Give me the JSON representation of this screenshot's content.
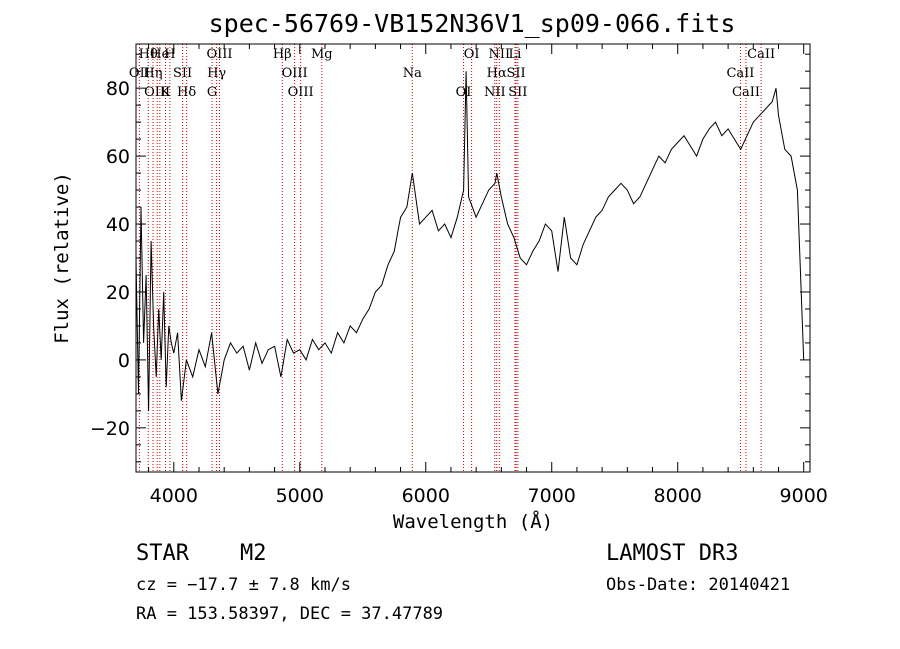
{
  "chart_data": {
    "type": "line",
    "title": "spec-56769-VB152N36V1_sp09-066.fits",
    "xlabel": "Wavelength (Å)",
    "ylabel": "Flux (relative)",
    "xlim": [
      3700,
      9050
    ],
    "ylim": [
      -33,
      93
    ],
    "xticks": [
      4000,
      5000,
      6000,
      7000,
      8000,
      9000
    ],
    "yticks": [
      -20,
      0,
      20,
      40,
      60,
      80
    ],
    "spectrum": {
      "name": "flux",
      "x": [
        3700,
        3720,
        3740,
        3760,
        3780,
        3800,
        3820,
        3840,
        3860,
        3880,
        3900,
        3920,
        3940,
        3960,
        3980,
        4000,
        4030,
        4060,
        4100,
        4150,
        4200,
        4250,
        4300,
        4350,
        4400,
        4450,
        4500,
        4550,
        4600,
        4650,
        4700,
        4750,
        4800,
        4850,
        4900,
        4950,
        5000,
        5050,
        5100,
        5150,
        5200,
        5250,
        5300,
        5350,
        5400,
        5450,
        5500,
        5550,
        5600,
        5650,
        5700,
        5750,
        5780,
        5800,
        5850,
        5893,
        5920,
        5950,
        6000,
        6050,
        6100,
        6150,
        6200,
        6250,
        6300,
        6320,
        6340,
        6400,
        6450,
        6500,
        6550,
        6564,
        6600,
        6650,
        6700,
        6750,
        6800,
        6850,
        6900,
        6950,
        7000,
        7050,
        7100,
        7150,
        7200,
        7250,
        7300,
        7350,
        7400,
        7450,
        7500,
        7550,
        7600,
        7650,
        7700,
        7750,
        7800,
        7850,
        7900,
        7950,
        8000,
        8050,
        8100,
        8150,
        8200,
        8250,
        8300,
        8350,
        8400,
        8450,
        8500,
        8550,
        8600,
        8650,
        8700,
        8750,
        8780,
        8800,
        8850,
        8900,
        8950,
        8980,
        9000
      ],
      "y": [
        30,
        -10,
        45,
        5,
        25,
        -15,
        35,
        10,
        -5,
        15,
        0,
        20,
        -8,
        10,
        5,
        2,
        8,
        -12,
        0,
        -5,
        3,
        -2,
        8,
        -10,
        0,
        5,
        2,
        4,
        -3,
        5,
        -1,
        3,
        4,
        -5,
        6,
        2,
        3,
        0,
        6,
        3,
        5,
        2,
        8,
        5,
        10,
        8,
        12,
        15,
        20,
        22,
        28,
        32,
        38,
        42,
        45,
        55,
        48,
        40,
        42,
        44,
        38,
        40,
        36,
        42,
        50,
        85,
        48,
        42,
        46,
        50,
        52,
        55,
        48,
        40,
        36,
        30,
        28,
        32,
        35,
        40,
        38,
        26,
        42,
        30,
        28,
        34,
        38,
        42,
        44,
        48,
        50,
        52,
        50,
        46,
        48,
        52,
        56,
        60,
        58,
        62,
        64,
        66,
        63,
        60,
        65,
        68,
        70,
        66,
        68,
        65,
        62,
        66,
        70,
        72,
        74,
        76,
        80,
        72,
        62,
        60,
        50,
        20,
        0
      ]
    },
    "line_markers": [
      {
        "label": "Hθ",
        "x": 3797
      },
      {
        "label": "OII",
        "x": 3727
      },
      {
        "label": "OIII",
        "x": 3868
      },
      {
        "label": "He",
        "x": 3889
      },
      {
        "label": "Hη",
        "x": 3835
      },
      {
        "label": "K",
        "x": 3934
      },
      {
        "label": "H",
        "x": 3969
      },
      {
        "label": "SII",
        "x": 4070
      },
      {
        "label": "Hδ",
        "x": 4102
      },
      {
        "label": "OIII",
        "x": 4363
      },
      {
        "label": "Hγ",
        "x": 4340
      },
      {
        "label": "G",
        "x": 4304
      },
      {
        "label": "Hβ",
        "x": 4861
      },
      {
        "label": "OIII",
        "x": 4959
      },
      {
        "label": "OIII",
        "x": 5007
      },
      {
        "label": "Mg",
        "x": 5175
      },
      {
        "label": "Na",
        "x": 5893
      },
      {
        "label": "OI",
        "x": 6300
      },
      {
        "label": "OI",
        "x": 6364
      },
      {
        "label": "Hα",
        "x": 6563
      },
      {
        "label": "NII",
        "x": 6548
      },
      {
        "label": "NII",
        "x": 6584
      },
      {
        "label": "SII",
        "x": 6717
      },
      {
        "label": "SII",
        "x": 6731
      },
      {
        "label": "Li",
        "x": 6708
      },
      {
        "label": "CaII",
        "x": 8498
      },
      {
        "label": "CaII",
        "x": 8542
      },
      {
        "label": "CaII",
        "x": 8662
      }
    ]
  },
  "info": {
    "object_class": "STAR",
    "subclass": "M2",
    "survey": "LAMOST DR3",
    "redshift_text": "cz = −17.7 ± 7.8 km/s",
    "obs_date": "Obs-Date: 20140421",
    "coords": "RA = 153.58397, DEC =  37.47789"
  },
  "colors": {
    "axis": "#000000",
    "spectrum": "#000000",
    "marker_line": "#cc0000"
  }
}
